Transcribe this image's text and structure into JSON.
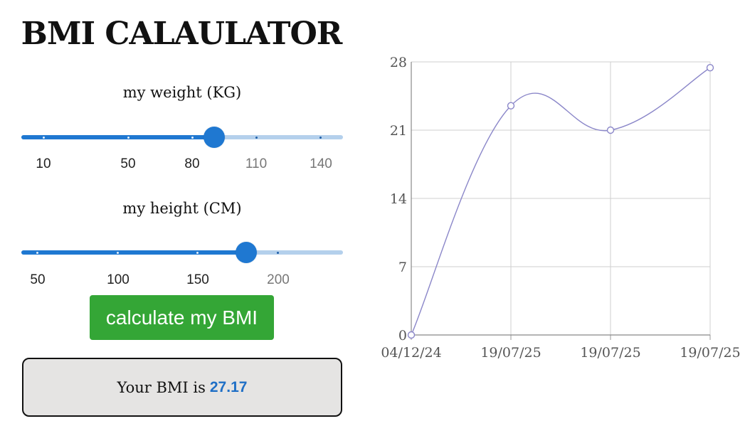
{
  "app": {
    "title": "BMI CALAULATOR"
  },
  "weight": {
    "label": "my weight (KG)",
    "marks": [
      "10",
      "50",
      "80",
      "110",
      "140"
    ],
    "value_fraction": 0.6
  },
  "height": {
    "label": "my height (CM)",
    "marks": [
      "50",
      "100",
      "150",
      "200"
    ],
    "value_fraction": 0.7
  },
  "calculate_button": {
    "label": "calculate my BMI"
  },
  "result": {
    "prefix": "Your BMI is",
    "value": "27.17"
  },
  "colors": {
    "slider_active": "#1f78d1",
    "slider_inactive": "#b4d0ec",
    "button_green": "#34a636",
    "result_value": "#1f6fc6",
    "line": "#8b87c9"
  },
  "chart_data": {
    "type": "line",
    "x": [
      "04/12/24",
      "19/07/25",
      "19/07/25",
      "19/07/25"
    ],
    "values": [
      0,
      23.5,
      21,
      27.4
    ],
    "ylim": [
      0,
      28
    ],
    "yticks": [
      0,
      7,
      14,
      21,
      28
    ],
    "grid": true,
    "smooth": true
  }
}
